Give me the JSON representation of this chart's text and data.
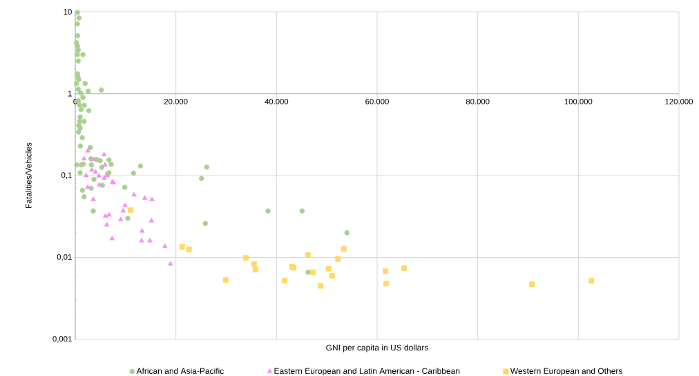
{
  "chart_data": {
    "type": "scatter",
    "xlabel": "GNI per capita in US dollars",
    "ylabel": "Fatalities/Vehicles",
    "xlim": [
      0,
      120000
    ],
    "ylim": [
      0.001,
      10
    ],
    "log": "y",
    "grid": true,
    "legend": "bottom",
    "xticks": [
      0,
      {
        "value": 20000,
        "label": "20.000"
      },
      {
        "value": 40000,
        "label": "40.000"
      },
      {
        "value": 60000,
        "label": "60.000"
      },
      {
        "value": 80000,
        "label": "80.000"
      },
      {
        "value": 100000,
        "label": "100.000"
      },
      {
        "value": 120000,
        "label": "120.000"
      }
    ],
    "yticks": [
      {
        "value": 0.001,
        "label": "0,001"
      },
      {
        "value": 0.01,
        "label": "0,01"
      },
      {
        "value": 0.1,
        "label": "0,1"
      },
      1,
      10
    ],
    "series": [
      {
        "name": "African and Asia-Pacific",
        "color": "#a9d18e",
        "marker": "circle",
        "x": [
          450,
          730,
          410,
          450,
          230,
          450,
          590,
          410,
          1510,
          590,
          450,
          500,
          690,
          230,
          1960,
          590,
          2570,
          5180,
          1060,
          1510,
          590,
          1790,
          820,
          1140,
          2700,
          960,
          870,
          1740,
          690,
          960,
          640,
          1370,
          1000,
          2980,
          3110,
          4260,
          4940,
          6690,
          270,
          1190,
          1600,
          3200,
          5260,
          7140,
          12950,
          960,
          6690,
          6410,
          11580,
          3710,
          5400,
          3160,
          9840,
          1420,
          1740,
          3570,
          10430,
          26130,
          25080,
          25850,
          38300,
          45080,
          54000,
          46270
        ],
        "values": [
          9.8,
          8.4,
          7.1,
          5.1,
          4.2,
          3.8,
          3.4,
          3.0,
          3.0,
          2.5,
          1.75,
          1.6,
          1.5,
          1.33,
          1.33,
          1.13,
          1.07,
          1.11,
          1.02,
          0.9,
          0.82,
          0.72,
          0.73,
          0.64,
          0.62,
          0.52,
          0.46,
          0.46,
          0.41,
          0.38,
          0.34,
          0.29,
          0.23,
          0.22,
          0.16,
          0.157,
          0.152,
          0.155,
          0.135,
          0.135,
          0.138,
          0.135,
          0.126,
          0.137,
          0.131,
          0.108,
          0.108,
          0.105,
          0.107,
          0.09,
          0.076,
          0.07,
          0.072,
          0.066,
          0.055,
          0.037,
          0.03,
          0.127,
          0.092,
          0.026,
          0.037,
          0.037,
          0.02,
          0.0066
        ]
      },
      {
        "name": "Eastern European and Latin American - Caribbean",
        "color": "#f78ef0",
        "marker": "triangle",
        "x": [
          2520,
          5720,
          1740,
          3710,
          5900,
          3300,
          4030,
          4710,
          2150,
          5770,
          6320,
          7370,
          7590,
          2470,
          4810,
          3570,
          11670,
          13820,
          15240,
          9890,
          9520,
          6000,
          6730,
          9020,
          15150,
          6270,
          13280,
          7320,
          13180,
          14830,
          17810,
          18910
        ],
        "values": [
          0.2,
          0.18,
          0.16,
          0.157,
          0.135,
          0.117,
          0.11,
          0.099,
          0.1,
          0.093,
          0.1,
          0.083,
          0.082,
          0.072,
          0.077,
          0.051,
          0.058,
          0.053,
          0.051,
          0.043,
          0.037,
          0.032,
          0.033,
          0.029,
          0.028,
          0.025,
          0.021,
          0.017,
          0.016,
          0.016,
          0.0136,
          0.0083
        ]
      },
      {
        "name": "Western European and Others",
        "color": "#ffd966",
        "marker": "square",
        "x": [
          10980,
          21240,
          22610,
          29930,
          33910,
          35560,
          35830,
          41600,
          43070,
          43390,
          46270,
          47240,
          48760,
          50360,
          51050,
          52190,
          53380,
          61660,
          65370,
          61800,
          90760,
          102600
        ],
        "values": [
          0.038,
          0.0135,
          0.0125,
          0.0053,
          0.0099,
          0.0083,
          0.0071,
          0.0052,
          0.0077,
          0.0075,
          0.0107,
          0.0066,
          0.0045,
          0.0073,
          0.006,
          0.0096,
          0.0127,
          0.0068,
          0.0074,
          0.0048,
          0.0047,
          0.0052
        ]
      }
    ]
  }
}
